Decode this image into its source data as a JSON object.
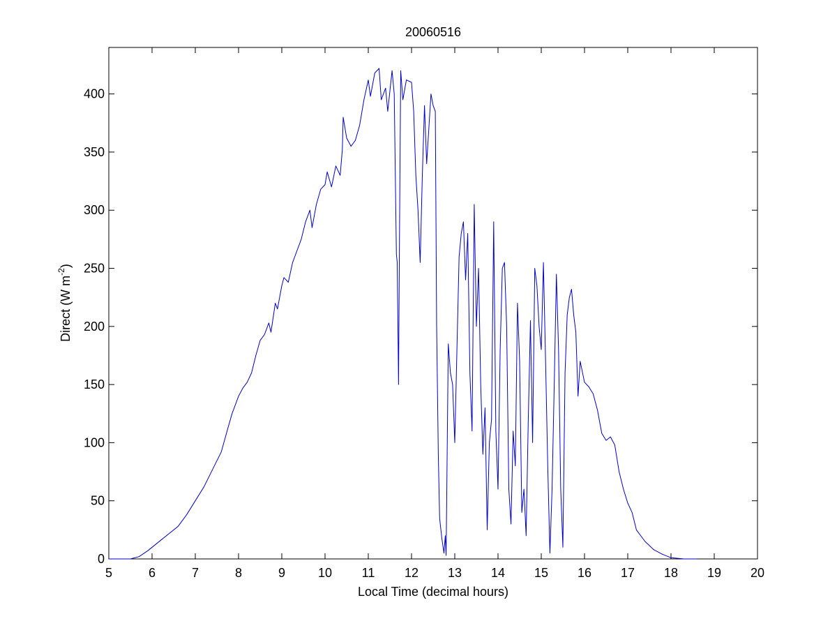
{
  "chart_data": {
    "type": "line",
    "title": "20060516",
    "xlabel": "Local Time (decimal hours)",
    "ylabel_main": "Direct (W m",
    "ylabel_sup": "-2",
    "ylabel_close": ")",
    "xlim": [
      5,
      20
    ],
    "ylim": [
      0,
      440
    ],
    "xticks": [
      5,
      6,
      7,
      8,
      9,
      10,
      11,
      12,
      13,
      14,
      15,
      16,
      17,
      18,
      19,
      20
    ],
    "yticks": [
      0,
      50,
      100,
      150,
      200,
      250,
      300,
      350,
      400
    ],
    "grid": false,
    "series": [
      {
        "color": "#0000c8",
        "points": [
          [
            5.0,
            0
          ],
          [
            5.5,
            0
          ],
          [
            5.7,
            2
          ],
          [
            5.9,
            7
          ],
          [
            6.0,
            10
          ],
          [
            6.2,
            16
          ],
          [
            6.4,
            22
          ],
          [
            6.6,
            28
          ],
          [
            6.8,
            38
          ],
          [
            7.0,
            50
          ],
          [
            7.2,
            62
          ],
          [
            7.4,
            77
          ],
          [
            7.6,
            92
          ],
          [
            7.75,
            112
          ],
          [
            7.85,
            125
          ],
          [
            8.0,
            140
          ],
          [
            8.1,
            147
          ],
          [
            8.2,
            152
          ],
          [
            8.3,
            160
          ],
          [
            8.4,
            175
          ],
          [
            8.5,
            188
          ],
          [
            8.6,
            193
          ],
          [
            8.7,
            203
          ],
          [
            8.75,
            195
          ],
          [
            8.85,
            220
          ],
          [
            8.9,
            215
          ],
          [
            9.0,
            235
          ],
          [
            9.05,
            242
          ],
          [
            9.15,
            238
          ],
          [
            9.25,
            255
          ],
          [
            9.35,
            265
          ],
          [
            9.45,
            275
          ],
          [
            9.55,
            290
          ],
          [
            9.65,
            300
          ],
          [
            9.7,
            285
          ],
          [
            9.8,
            305
          ],
          [
            9.9,
            318
          ],
          [
            10.0,
            322
          ],
          [
            10.05,
            333
          ],
          [
            10.15,
            320
          ],
          [
            10.25,
            338
          ],
          [
            10.35,
            330
          ],
          [
            10.4,
            352
          ],
          [
            10.42,
            380
          ],
          [
            10.5,
            362
          ],
          [
            10.6,
            355
          ],
          [
            10.7,
            360
          ],
          [
            10.8,
            373
          ],
          [
            10.9,
            395
          ],
          [
            11.0,
            412
          ],
          [
            11.05,
            398
          ],
          [
            11.15,
            418
          ],
          [
            11.25,
            422
          ],
          [
            11.3,
            395
          ],
          [
            11.4,
            405
          ],
          [
            11.45,
            385
          ],
          [
            11.55,
            420
          ],
          [
            11.6,
            400
          ],
          [
            11.65,
            262
          ],
          [
            11.67,
            255
          ],
          [
            11.7,
            150
          ],
          [
            11.72,
            265
          ],
          [
            11.75,
            420
          ],
          [
            11.8,
            395
          ],
          [
            11.88,
            412
          ],
          [
            12.0,
            410
          ],
          [
            12.05,
            385
          ],
          [
            12.1,
            330
          ],
          [
            12.15,
            300
          ],
          [
            12.2,
            255
          ],
          [
            12.25,
            330
          ],
          [
            12.3,
            390
          ],
          [
            12.35,
            340
          ],
          [
            12.45,
            400
          ],
          [
            12.5,
            390
          ],
          [
            12.55,
            385
          ],
          [
            12.58,
            200
          ],
          [
            12.62,
            90
          ],
          [
            12.65,
            35
          ],
          [
            12.7,
            18
          ],
          [
            12.75,
            5
          ],
          [
            12.78,
            20
          ],
          [
            12.8,
            3
          ],
          [
            12.85,
            185
          ],
          [
            12.9,
            160
          ],
          [
            12.95,
            150
          ],
          [
            13.0,
            100
          ],
          [
            13.05,
            180
          ],
          [
            13.1,
            260
          ],
          [
            13.15,
            280
          ],
          [
            13.2,
            290
          ],
          [
            13.25,
            240
          ],
          [
            13.3,
            280
          ],
          [
            13.35,
            160
          ],
          [
            13.4,
            110
          ],
          [
            13.45,
            305
          ],
          [
            13.5,
            200
          ],
          [
            13.55,
            250
          ],
          [
            13.6,
            150
          ],
          [
            13.65,
            90
          ],
          [
            13.7,
            130
          ],
          [
            13.75,
            25
          ],
          [
            13.8,
            100
          ],
          [
            13.85,
            120
          ],
          [
            13.9,
            290
          ],
          [
            13.95,
            110
          ],
          [
            14.0,
            60
          ],
          [
            14.05,
            180
          ],
          [
            14.1,
            250
          ],
          [
            14.15,
            255
          ],
          [
            14.2,
            200
          ],
          [
            14.25,
            60
          ],
          [
            14.3,
            30
          ],
          [
            14.35,
            110
          ],
          [
            14.4,
            80
          ],
          [
            14.45,
            220
          ],
          [
            14.5,
            170
          ],
          [
            14.55,
            40
          ],
          [
            14.6,
            60
          ],
          [
            14.65,
            20
          ],
          [
            14.7,
            120
          ],
          [
            14.75,
            205
          ],
          [
            14.8,
            100
          ],
          [
            14.85,
            250
          ],
          [
            14.9,
            235
          ],
          [
            14.95,
            200
          ],
          [
            15.0,
            180
          ],
          [
            15.05,
            255
          ],
          [
            15.1,
            170
          ],
          [
            15.15,
            80
          ],
          [
            15.2,
            5
          ],
          [
            15.25,
            60
          ],
          [
            15.3,
            150
          ],
          [
            15.35,
            245
          ],
          [
            15.4,
            180
          ],
          [
            15.45,
            60
          ],
          [
            15.5,
            10
          ],
          [
            15.55,
            160
          ],
          [
            15.6,
            210
          ],
          [
            15.65,
            225
          ],
          [
            15.7,
            232
          ],
          [
            15.75,
            210
          ],
          [
            15.8,
            195
          ],
          [
            15.85,
            140
          ],
          [
            15.9,
            170
          ],
          [
            16.0,
            152
          ],
          [
            16.1,
            148
          ],
          [
            16.2,
            142
          ],
          [
            16.3,
            128
          ],
          [
            16.4,
            108
          ],
          [
            16.5,
            102
          ],
          [
            16.6,
            105
          ],
          [
            16.7,
            98
          ],
          [
            16.8,
            75
          ],
          [
            16.9,
            60
          ],
          [
            17.0,
            48
          ],
          [
            17.1,
            40
          ],
          [
            17.2,
            25
          ],
          [
            17.4,
            15
          ],
          [
            17.6,
            8
          ],
          [
            17.8,
            4
          ],
          [
            18.0,
            1
          ],
          [
            18.3,
            0
          ],
          [
            18.6,
            0
          ]
        ]
      }
    ]
  }
}
